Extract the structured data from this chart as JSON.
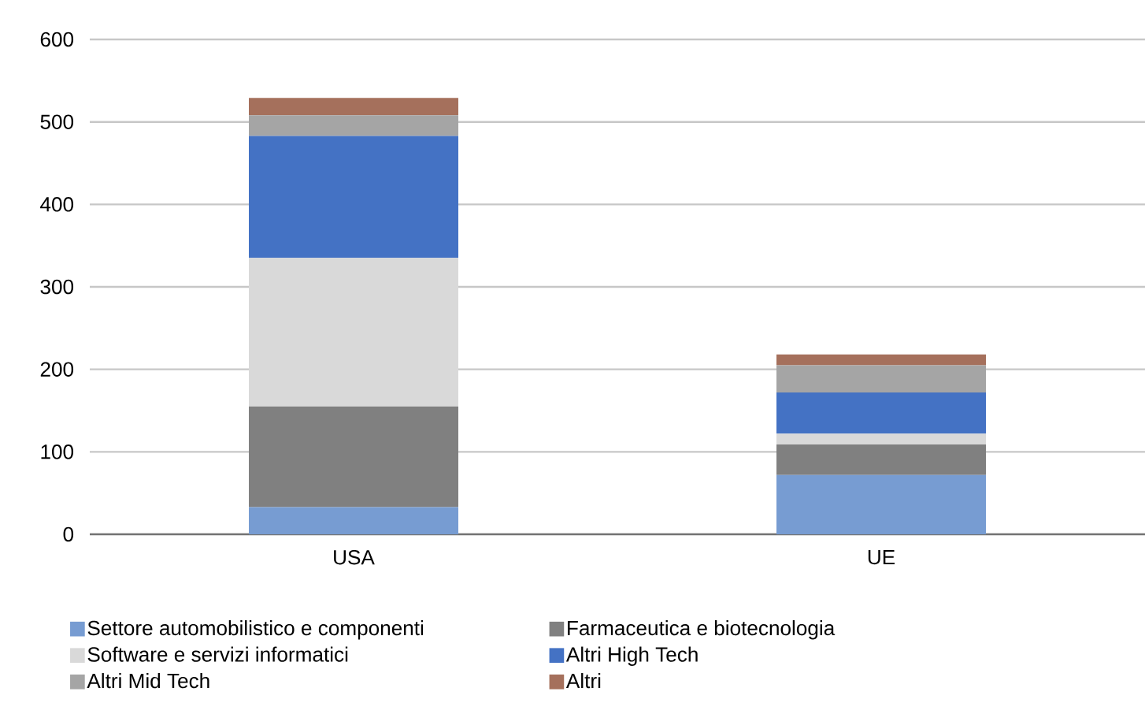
{
  "chart_data": {
    "type": "bar",
    "stacked": true,
    "categories": [
      "USA",
      "UE"
    ],
    "series": [
      {
        "name": "Settore automobilistico e componenti",
        "color": "#779cd2",
        "values": [
          33,
          72
        ]
      },
      {
        "name": "Farmaceutica e biotecnologia",
        "color": "#808080",
        "values": [
          122,
          37
        ]
      },
      {
        "name": "Software e servizi informatici",
        "color": "#d9d9d9",
        "values": [
          180,
          13
        ]
      },
      {
        "name": "Altri High Tech",
        "color": "#4472c4",
        "values": [
          148,
          50
        ]
      },
      {
        "name": "Altri Mid Tech",
        "color": "#a5a5a5",
        "values": [
          25,
          33
        ]
      },
      {
        "name": "Altri",
        "color": "#a5705c",
        "values": [
          21,
          13
        ]
      }
    ],
    "ylim": [
      0,
      600
    ],
    "yticks": [
      0,
      100,
      200,
      300,
      400,
      500,
      600
    ],
    "grid": "y",
    "legend": "bottom"
  }
}
